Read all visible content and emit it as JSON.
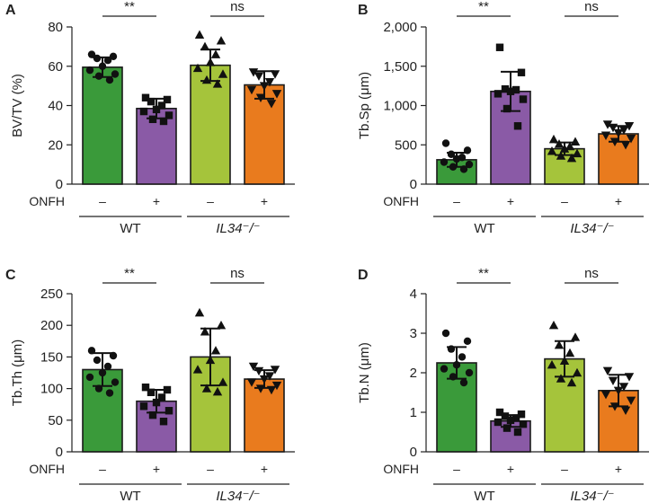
{
  "chart_data": [
    {
      "panel": "A",
      "type": "bar",
      "ylabel": "BV/TV (%)",
      "ylim": [
        0,
        80
      ],
      "yticks": [
        "0",
        "20",
        "40",
        "60",
        "80"
      ],
      "yticks_values": [
        0,
        20,
        40,
        60,
        80
      ],
      "condition_label": "ONFH",
      "condition_marks": [
        "–",
        "+",
        "–",
        "+"
      ],
      "groups": [
        "WT",
        "IL34⁻/⁻"
      ],
      "significance": [
        "**",
        "ns"
      ],
      "bars": [
        {
          "label": "WT ONFH–",
          "mean": 59.5,
          "sd": 5,
          "color": "#3a9a3a",
          "marker": "circle",
          "points": [
            66,
            65,
            64,
            63,
            60,
            58,
            56,
            55,
            53
          ]
        },
        {
          "label": "WT ONFH+",
          "mean": 38.5,
          "sd": 5,
          "color": "#8a5aa6",
          "marker": "square",
          "points": [
            44,
            43,
            42,
            40,
            38,
            37,
            35,
            33,
            32
          ]
        },
        {
          "label": "IL34-/- ONFH–",
          "mean": 60.5,
          "sd": 8,
          "color": "#a5c43b",
          "marker": "triangle-up",
          "points": [
            76,
            73,
            70,
            66,
            62,
            59,
            56,
            53,
            51
          ]
        },
        {
          "label": "IL34-/- ONFH+",
          "mean": 50.5,
          "sd": 7,
          "color": "#e97b1e",
          "marker": "triangle-down",
          "points": [
            57,
            56,
            55,
            52,
            50,
            48,
            46,
            44,
            41
          ]
        }
      ]
    },
    {
      "panel": "B",
      "type": "bar",
      "ylabel": "Tb.Sp (μm)",
      "ylim": [
        0,
        2000
      ],
      "yticks": [
        "0",
        "500",
        "1,000",
        "1,500",
        "2,000"
      ],
      "yticks_values": [
        0,
        500,
        1000,
        1500,
        2000
      ],
      "condition_label": "ONFH",
      "condition_marks": [
        "–",
        "+",
        "–",
        "+"
      ],
      "groups": [
        "WT",
        "IL34⁻/⁻"
      ],
      "significance": [
        "**",
        "ns"
      ],
      "bars": [
        {
          "label": "WT ONFH–",
          "mean": 310,
          "sd": 90,
          "color": "#3a9a3a",
          "marker": "circle",
          "points": [
            520,
            430,
            380,
            340,
            320,
            280,
            250,
            220,
            190
          ]
        },
        {
          "label": "WT ONFH+",
          "mean": 1180,
          "sd": 250,
          "color": "#8a5aa6",
          "marker": "square",
          "points": [
            1740,
            1420,
            1210,
            1200,
            1180,
            1150,
            1080,
            960,
            740
          ]
        },
        {
          "label": "IL34-/- ONFH–",
          "mean": 450,
          "sd": 80,
          "color": "#a5c43b",
          "marker": "triangle-up",
          "points": [
            570,
            540,
            510,
            480,
            450,
            420,
            390,
            360,
            330
          ]
        },
        {
          "label": "IL34-/- ONFH+",
          "mean": 640,
          "sd": 100,
          "color": "#e97b1e",
          "marker": "triangle-down",
          "points": [
            760,
            740,
            720,
            690,
            650,
            620,
            580,
            540,
            500
          ]
        }
      ]
    },
    {
      "panel": "C",
      "type": "bar",
      "ylabel": "Tb.Th (μm)",
      "ylim": [
        0,
        250
      ],
      "yticks": [
        "0",
        "50",
        "100",
        "150",
        "200",
        "250"
      ],
      "yticks_values": [
        0,
        50,
        100,
        150,
        200,
        250
      ],
      "condition_label": "ONFH",
      "condition_marks": [
        "–",
        "+",
        "–",
        "+"
      ],
      "groups": [
        "WT",
        "IL34⁻/⁻"
      ],
      "significance": [
        "**",
        "ns"
      ],
      "bars": [
        {
          "label": "WT ONFH–",
          "mean": 130,
          "sd": 26,
          "color": "#3a9a3a",
          "marker": "circle",
          "points": [
            160,
            152,
            145,
            135,
            125,
            118,
            110,
            100,
            93
          ]
        },
        {
          "label": "WT ONFH+",
          "mean": 80,
          "sd": 18,
          "color": "#8a5aa6",
          "marker": "square",
          "points": [
            102,
            98,
            94,
            86,
            78,
            72,
            65,
            58,
            48
          ]
        },
        {
          "label": "IL34-/- ONFH–",
          "mean": 150,
          "sd": 45,
          "color": "#a5c43b",
          "marker": "triangle-up",
          "points": [
            220,
            200,
            190,
            160,
            145,
            130,
            110,
            100,
            95
          ]
        },
        {
          "label": "IL34-/- ONFH+",
          "mean": 115,
          "sd": 14,
          "color": "#e97b1e",
          "marker": "triangle-down",
          "points": [
            135,
            130,
            128,
            120,
            115,
            110,
            105,
            100,
            98
          ]
        }
      ]
    },
    {
      "panel": "D",
      "type": "bar",
      "ylabel": "Tb.N (μm)",
      "ylim": [
        0,
        4
      ],
      "yticks": [
        "0",
        "1",
        "2",
        "3",
        "4"
      ],
      "yticks_values": [
        0,
        1,
        2,
        3,
        4
      ],
      "condition_label": "ONFH",
      "condition_marks": [
        "–",
        "+",
        "–",
        "+"
      ],
      "groups": [
        "WT",
        "IL34⁻/⁻"
      ],
      "significance": [
        "**",
        "ns"
      ],
      "bars": [
        {
          "label": "WT ONFH–",
          "mean": 2.25,
          "sd": 0.4,
          "color": "#3a9a3a",
          "marker": "circle",
          "points": [
            3.0,
            2.8,
            2.6,
            2.4,
            2.2,
            2.1,
            2.0,
            1.9,
            1.75
          ]
        },
        {
          "label": "WT ONFH+",
          "mean": 0.78,
          "sd": 0.15,
          "color": "#8a5aa6",
          "marker": "square",
          "points": [
            1.0,
            0.95,
            0.9,
            0.85,
            0.8,
            0.75,
            0.7,
            0.6,
            0.5
          ]
        },
        {
          "label": "IL34-/- ONFH–",
          "mean": 2.35,
          "sd": 0.45,
          "color": "#a5c43b",
          "marker": "triangle-up",
          "points": [
            3.2,
            2.9,
            2.7,
            2.5,
            2.3,
            2.2,
            2.0,
            1.85,
            1.75
          ]
        },
        {
          "label": "IL34-/- ONFH+",
          "mean": 1.55,
          "sd": 0.4,
          "color": "#e97b1e",
          "marker": "triangle-down",
          "points": [
            2.05,
            1.9,
            1.8,
            1.65,
            1.55,
            1.45,
            1.3,
            1.15,
            1.05
          ]
        }
      ]
    }
  ]
}
